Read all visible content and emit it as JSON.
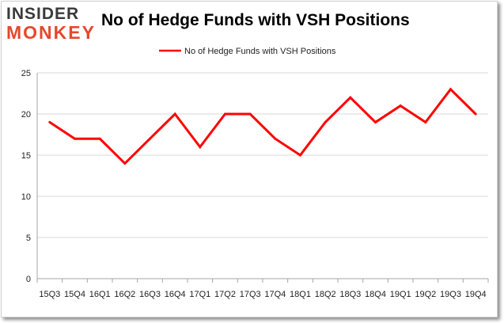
{
  "brand": {
    "logo_top": "INSIDER",
    "logo_bottom": "MONKEY"
  },
  "colors": {
    "series": "#ff0000",
    "grid": "#d9d9d9",
    "logo_accent": "#e8462c"
  },
  "chart_data": {
    "type": "line",
    "title": "No of Hedge Funds with VSH Positions",
    "xlabel": "",
    "ylabel": "",
    "categories": [
      "15Q3",
      "15Q4",
      "16Q1",
      "16Q2",
      "16Q3",
      "16Q4",
      "17Q1",
      "17Q2",
      "17Q3",
      "17Q4",
      "18Q1",
      "18Q2",
      "18Q3",
      "18Q4",
      "19Q1",
      "19Q2",
      "19Q3",
      "19Q4"
    ],
    "series": [
      {
        "name": "No of Hedge Funds with VSH Positions",
        "values": [
          19,
          17,
          17,
          14,
          17,
          20,
          16,
          20,
          20,
          17,
          15,
          19,
          22,
          19,
          21,
          19,
          23,
          20
        ]
      }
    ],
    "ylim": [
      0,
      25
    ],
    "yticks": [
      0,
      5,
      10,
      15,
      20,
      25
    ],
    "grid": true,
    "legend": "top-center"
  }
}
